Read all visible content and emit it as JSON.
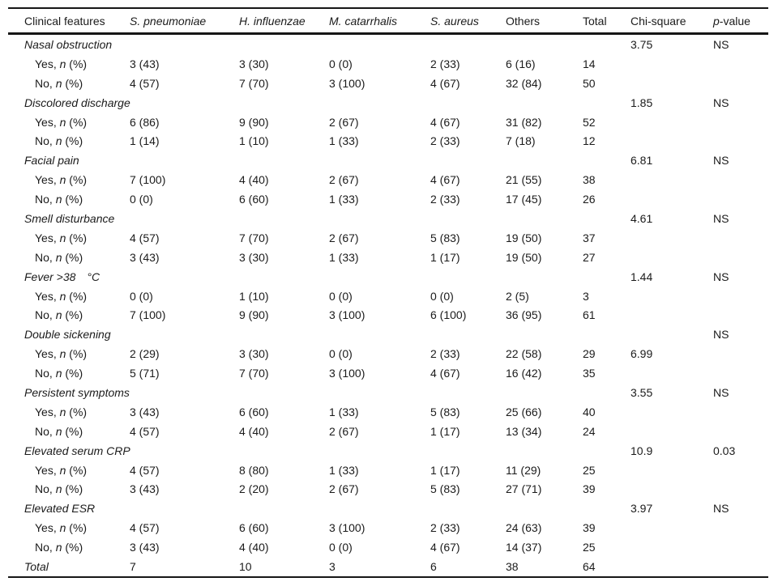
{
  "table": {
    "columns": [
      {
        "parts": [
          {
            "t": "Clinical features",
            "i": false
          }
        ]
      },
      {
        "parts": [
          {
            "t": "S. pneumoniae",
            "i": true
          }
        ]
      },
      {
        "parts": [
          {
            "t": "H. influenzae",
            "i": true
          }
        ]
      },
      {
        "parts": [
          {
            "t": "M. catarrhalis",
            "i": true
          }
        ]
      },
      {
        "parts": [
          {
            "t": "S. aureus",
            "i": true
          }
        ]
      },
      {
        "parts": [
          {
            "t": "Others",
            "i": false
          }
        ]
      },
      {
        "parts": [
          {
            "t": "Total",
            "i": false
          }
        ]
      },
      {
        "parts": [
          {
            "t": "Chi-square",
            "i": false
          }
        ]
      },
      {
        "parts": [
          {
            "t": "p",
            "i": true
          },
          {
            "t": "-value",
            "i": false
          }
        ]
      }
    ],
    "yes_label_parts": [
      {
        "t": "Yes, ",
        "i": false
      },
      {
        "t": "n",
        "i": true
      },
      {
        "t": " (%)",
        "i": false
      }
    ],
    "no_label_parts": [
      {
        "t": "No, ",
        "i": false
      },
      {
        "t": "n",
        "i": true
      },
      {
        "t": " (%)",
        "i": false
      }
    ],
    "sections": [
      {
        "feature": "Nasal obstruction",
        "chi": "3.75",
        "p": "NS",
        "chi_on_yes": false,
        "yes": [
          "3 (43)",
          "3 (30)",
          "0 (0)",
          "2 (33)",
          "6 (16)",
          "14"
        ],
        "no": [
          "4 (57)",
          "7 (70)",
          "3 (100)",
          "4 (67)",
          "32 (84)",
          "50"
        ]
      },
      {
        "feature": "Discolored discharge",
        "chi": "1.85",
        "p": "NS",
        "chi_on_yes": false,
        "yes": [
          "6 (86)",
          "9 (90)",
          "2 (67)",
          "4 (67)",
          "31 (82)",
          "52"
        ],
        "no": [
          "1 (14)",
          "1 (10)",
          "1 (33)",
          "2 (33)",
          "7 (18)",
          "12"
        ]
      },
      {
        "feature": "Facial pain",
        "chi": "6.81",
        "p": "NS",
        "chi_on_yes": false,
        "yes": [
          "7 (100)",
          "4 (40)",
          "2 (67)",
          "4 (67)",
          "21 (55)",
          "38"
        ],
        "no": [
          "0 (0)",
          "6 (60)",
          "1 (33)",
          "2 (33)",
          "17 (45)",
          "26"
        ]
      },
      {
        "feature": "Smell disturbance",
        "chi": "4.61",
        "p": "NS",
        "chi_on_yes": false,
        "yes": [
          "4 (57)",
          "7 (70)",
          "2 (67)",
          "5 (83)",
          "19 (50)",
          "37"
        ],
        "no": [
          "3 (43)",
          "3 (30)",
          "1 (33)",
          "1 (17)",
          "19 (50)",
          "27"
        ]
      },
      {
        "feature": "Fever >38 °C",
        "chi": "1.44",
        "p": "NS",
        "chi_on_yes": false,
        "yes": [
          "0 (0)",
          "1 (10)",
          "0 (0)",
          "0 (0)",
          "2 (5)",
          "3"
        ],
        "no": [
          "7 (100)",
          "9 (90)",
          "3 (100)",
          "6 (100)",
          "36 (95)",
          "61"
        ]
      },
      {
        "feature": "Double sickening",
        "chi": "6.99",
        "p": "NS",
        "chi_on_yes": true,
        "yes": [
          "2 (29)",
          "3 (30)",
          "0 (0)",
          "2 (33)",
          "22 (58)",
          "29"
        ],
        "no": [
          "5 (71)",
          "7 (70)",
          "3 (100)",
          "4 (67)",
          "16 (42)",
          "35"
        ]
      },
      {
        "feature": "Persistent symptoms",
        "chi": "3.55",
        "p": "NS",
        "chi_on_yes": false,
        "yes": [
          "3 (43)",
          "6 (60)",
          "1 (33)",
          "5 (83)",
          "25 (66)",
          "40"
        ],
        "no": [
          "4 (57)",
          "4 (40)",
          "2 (67)",
          "1 (17)",
          "13 (34)",
          "24"
        ]
      },
      {
        "feature": "Elevated serum CRP",
        "chi": "10.9",
        "p": "0.03",
        "chi_on_yes": false,
        "yes": [
          "4 (57)",
          "8 (80)",
          "1 (33)",
          "1 (17)",
          "11 (29)",
          "25"
        ],
        "no": [
          "3 (43)",
          "2 (20)",
          "2 (67)",
          "5 (83)",
          "27 (71)",
          "39"
        ]
      },
      {
        "feature": "Elevated ESR",
        "chi": "3.97",
        "p": "NS",
        "chi_on_yes": false,
        "yes": [
          "4 (57)",
          "6 (60)",
          "3 (100)",
          "2 (33)",
          "24 (63)",
          "39"
        ],
        "no": [
          "3 (43)",
          "4 (40)",
          "0 (0)",
          "4 (67)",
          "14 (37)",
          "25"
        ]
      }
    ],
    "total": {
      "label": "Total",
      "values": [
        "7",
        "10",
        "3",
        "6",
        "38",
        "64"
      ]
    }
  }
}
